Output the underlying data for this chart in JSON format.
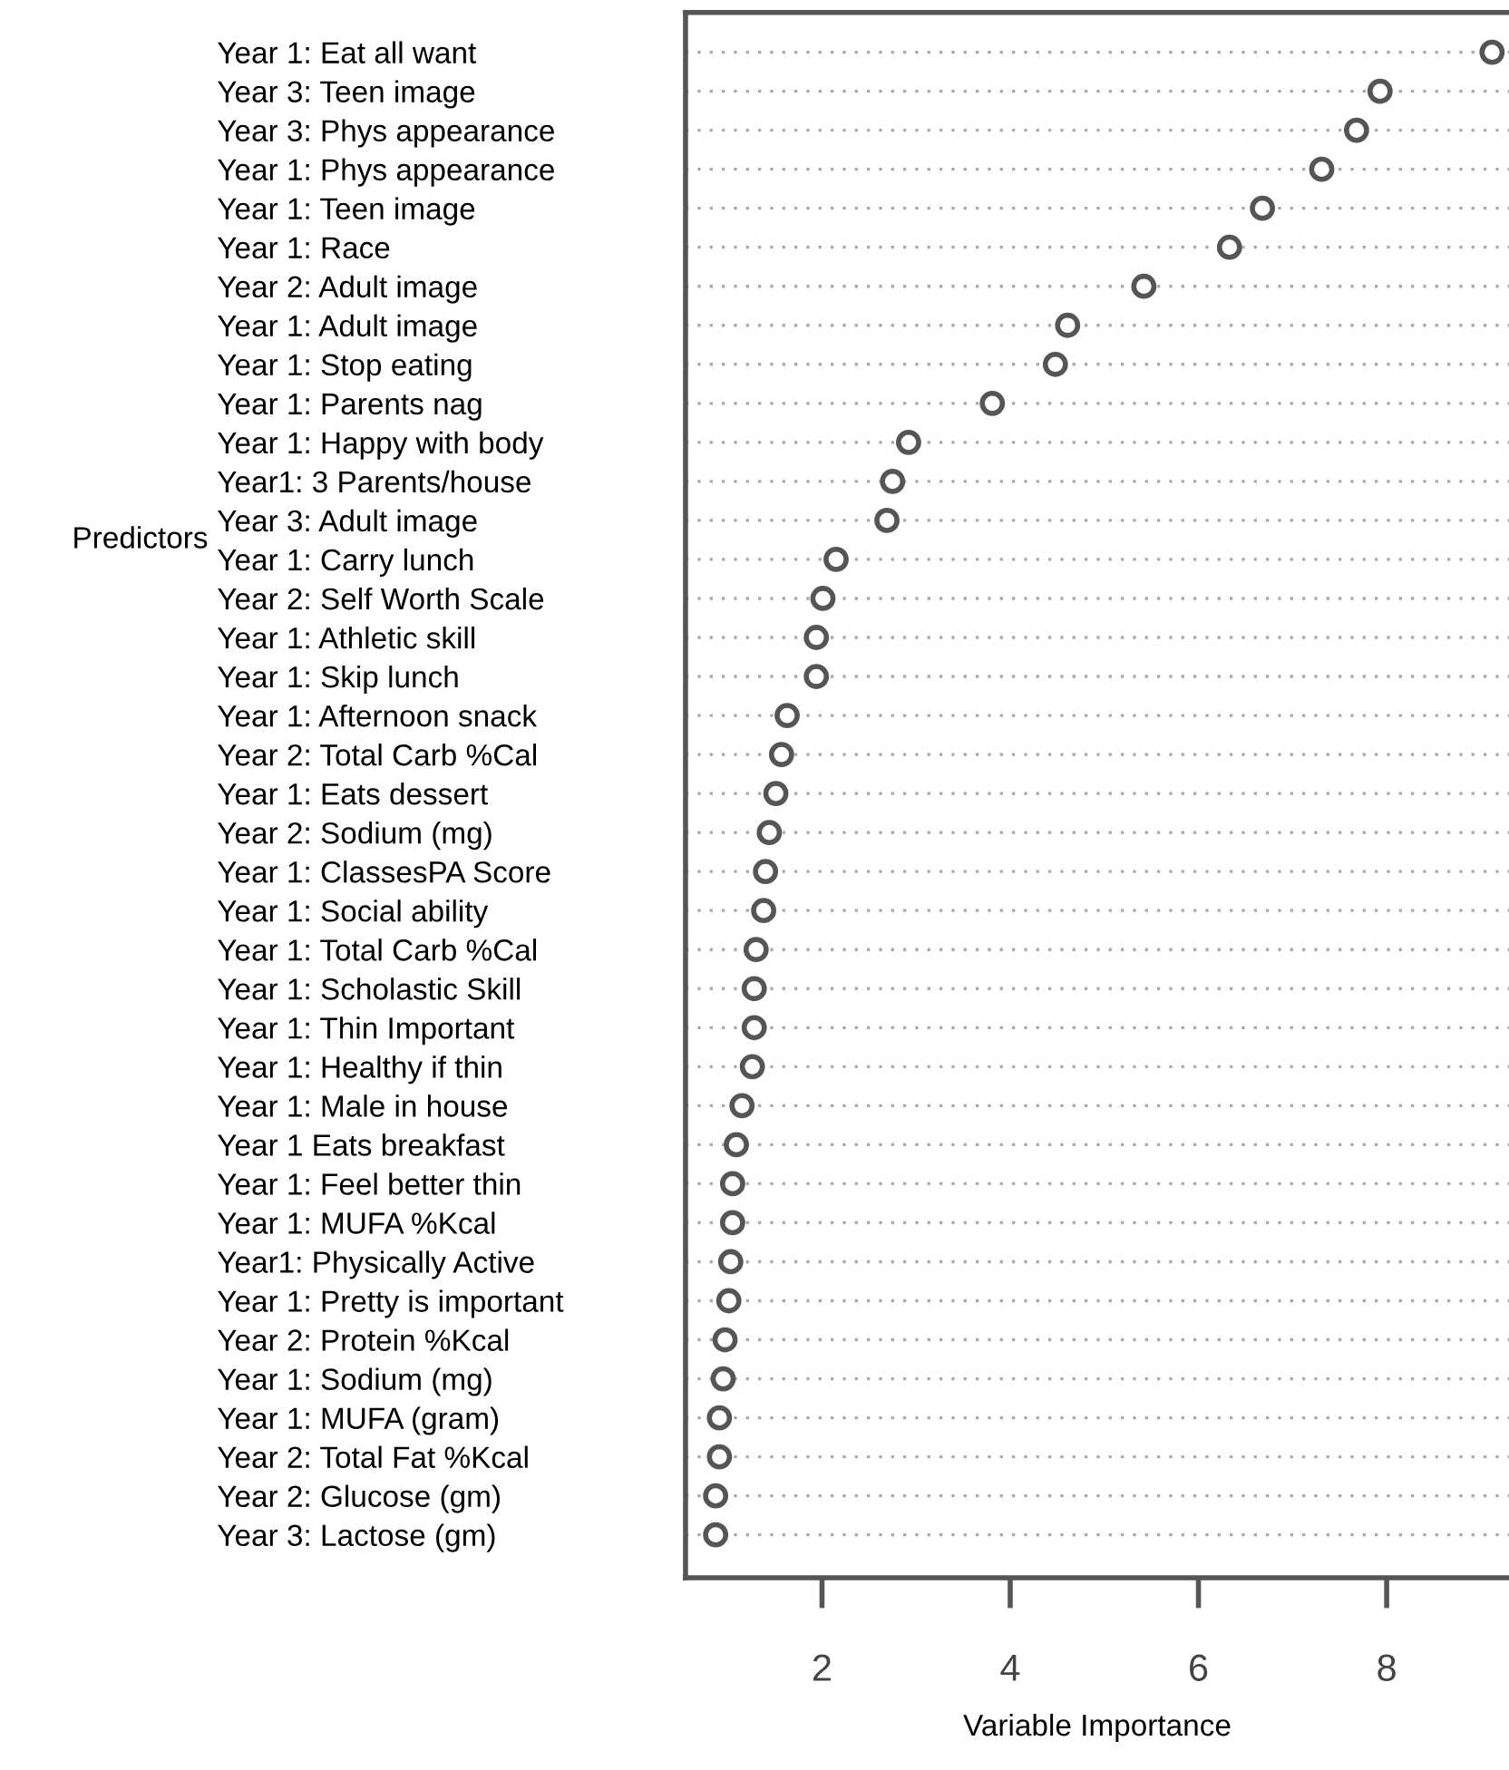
{
  "chart_data": {
    "type": "scatter",
    "orientation": "horizontal",
    "xlabel": "Variable Importance",
    "ylabel": "Predictors",
    "categories": [
      "Year 1: Eat all want",
      "Year 3: Teen image",
      "Year 3: Phys appearance",
      "Year 1: Phys appearance",
      "Year 1: Teen image",
      "Year 1: Race",
      "Year 2: Adult image",
      "Year 1: Adult image",
      "Year 1: Stop eating",
      "Year 1: Parents nag",
      "Year 1: Happy with body",
      "Year1: 3 Parents/house",
      "Year 3: Adult image",
      "Year 1: Carry lunch",
      "Year 2: Self Worth Scale",
      "Year 1: Athletic skill",
      "Year 1: Skip lunch",
      "Year 1: Afternoon snack",
      "Year 2: Total Carb %Cal",
      "Year 1: Eats dessert",
      "Year 2: Sodium (mg)",
      "Year 1: ClassesPA Score",
      "Year 1: Social ability",
      "Year 1: Total Carb %Cal",
      "Year 1: Scholastic Skill",
      "Year 1: Thin Important",
      "Year 1: Healthy if thin",
      "Year 1: Male in house",
      "Year 1 Eats breakfast",
      "Year 1: Feel better thin",
      "Year 1: MUFA %Kcal",
      "Year1: Physically Active",
      "Year 1: Pretty is important",
      "Year 2: Protein %Kcal",
      "Year 1: Sodium (mg)",
      "Year 1: MUFA (gram)",
      "Year 2: Total Fat %Kcal",
      "Year 2: Glucose (gm)",
      "Year 3: Lactose (gm)"
    ],
    "values": [
      9.12,
      7.93,
      7.68,
      7.31,
      6.68,
      6.33,
      5.42,
      4.61,
      4.48,
      3.81,
      2.92,
      2.75,
      2.69,
      2.15,
      2.01,
      1.94,
      1.94,
      1.63,
      1.57,
      1.51,
      1.44,
      1.4,
      1.38,
      1.3,
      1.28,
      1.28,
      1.26,
      1.15,
      1.09,
      1.05,
      1.05,
      1.03,
      1.01,
      0.97,
      0.95,
      0.91,
      0.91,
      0.87,
      0.87
    ],
    "color": "#555555",
    "marker": "circle",
    "grid": "y",
    "legend": false,
    "xlim": [
      0.55,
      9.3
    ],
    "xticks": [
      2,
      4,
      6,
      8
    ]
  }
}
